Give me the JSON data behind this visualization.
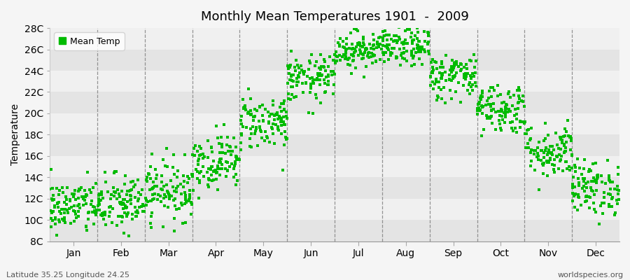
{
  "title": "Monthly Mean Temperatures 1901  -  2009",
  "ylabel": "Temperature",
  "xlabel": "",
  "footnote_left": "Latitude 35.25 Longitude 24.25",
  "footnote_right": "worldspecies.org",
  "legend_label": "Mean Temp",
  "marker_color": "#00bb00",
  "background_color": "#f5f5f5",
  "plot_bg_color": "#f0f0f0",
  "band_color_light": "#f0f0f0",
  "band_color_dark": "#e4e4e4",
  "ylim": [
    8,
    28
  ],
  "yticks": [
    8,
    10,
    12,
    14,
    16,
    18,
    20,
    22,
    24,
    26,
    28
  ],
  "ytick_labels": [
    "8C",
    "10C",
    "12C",
    "14C",
    "16C",
    "18C",
    "20C",
    "22C",
    "24C",
    "26C",
    "28C"
  ],
  "months": [
    "Jan",
    "Feb",
    "Mar",
    "Apr",
    "May",
    "Jun",
    "Jul",
    "Aug",
    "Sep",
    "Oct",
    "Nov",
    "Dec"
  ],
  "month_means": [
    11.2,
    11.5,
    12.8,
    15.5,
    19.2,
    23.2,
    26.0,
    26.2,
    23.5,
    20.5,
    16.5,
    13.0
  ],
  "month_stds": [
    1.3,
    1.4,
    1.4,
    1.3,
    1.3,
    1.1,
    0.9,
    0.9,
    1.1,
    1.2,
    1.3,
    1.3
  ],
  "n_years": 109,
  "random_seed": 42
}
